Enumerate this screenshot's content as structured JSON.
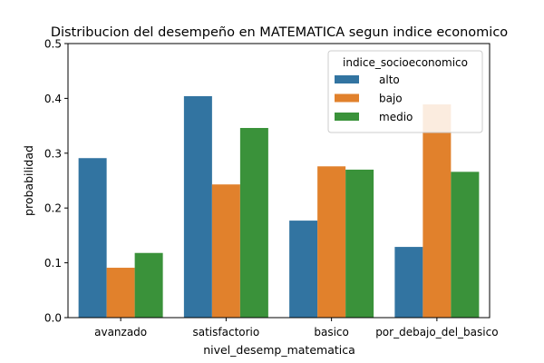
{
  "chart_data": {
    "type": "bar",
    "title": "Distribucion del desempeño en MATEMATICA segun indice economico",
    "xlabel": "nivel_desemp_matematica",
    "ylabel": "probabilidad",
    "ylim": [
      0,
      0.5
    ],
    "yticks": [
      0.0,
      0.1,
      0.2,
      0.3,
      0.4,
      0.5
    ],
    "ytick_labels": [
      "0.0",
      "0.1",
      "0.2",
      "0.3",
      "0.4",
      "0.5"
    ],
    "grid": false,
    "categories": [
      "avanzado",
      "satisfactorio",
      "basico",
      "por_debajo_del_basico"
    ],
    "legend": {
      "title": "indice_socioeconomico",
      "placement": "top-right"
    },
    "series": [
      {
        "name": "alto",
        "color": "#3274a1",
        "values": [
          0.291,
          0.404,
          0.177,
          0.129
        ]
      },
      {
        "name": "bajo",
        "color": "#e1812c",
        "values": [
          0.091,
          0.243,
          0.276,
          0.389
        ]
      },
      {
        "name": "medio",
        "color": "#3a923a",
        "values": [
          0.118,
          0.346,
          0.27,
          0.266
        ]
      }
    ]
  }
}
